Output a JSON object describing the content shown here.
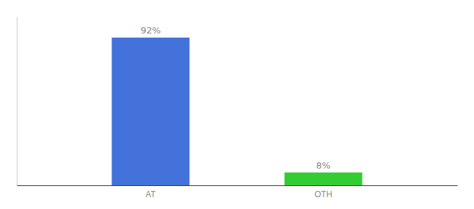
{
  "chart_data": {
    "type": "bar",
    "categories": [
      "AT",
      "OTH"
    ],
    "values": [
      92,
      8
    ],
    "value_labels": [
      "92%",
      "8%"
    ],
    "colors": [
      "#4472db",
      "#33cc33"
    ],
    "ylim": [
      0,
      105
    ],
    "data_labels": true,
    "tick_labels": "x"
  }
}
